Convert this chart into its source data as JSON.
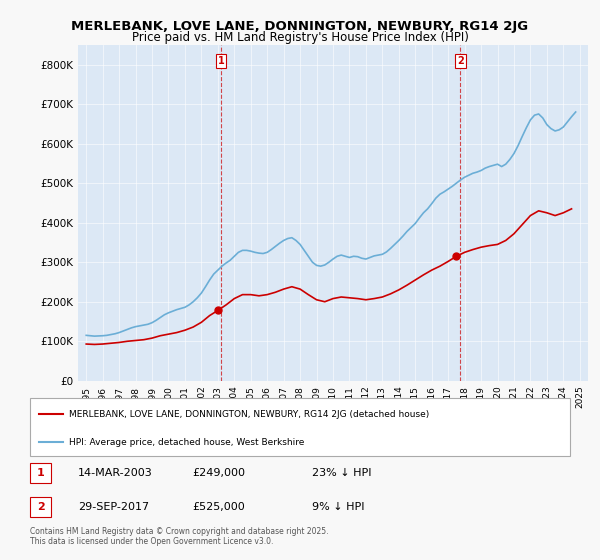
{
  "title": "MERLEBANK, LOVE LANE, DONNINGTON, NEWBURY, RG14 2JG",
  "subtitle": "Price paid vs. HM Land Registry's House Price Index (HPI)",
  "hpi_color": "#6baed6",
  "price_color": "#cc0000",
  "vline_color": "#cc0000",
  "background_color": "#e8f0f8",
  "plot_bg": "#dce8f5",
  "ylim": [
    0,
    850000
  ],
  "yticks": [
    0,
    100000,
    200000,
    300000,
    400000,
    500000,
    600000,
    700000,
    800000
  ],
  "ytick_labels": [
    "£0",
    "£100K",
    "£200K",
    "£300K",
    "£400K",
    "£500K",
    "£600K",
    "£700K",
    "£800K"
  ],
  "sale1_year": 2003.2,
  "sale1_price": 249000,
  "sale1_label": "1",
  "sale1_date": "14-MAR-2003",
  "sale1_pct": "23% ↓ HPI",
  "sale2_year": 2017.75,
  "sale2_price": 525000,
  "sale2_label": "2",
  "sale2_date": "29-SEP-2017",
  "sale2_pct": "9% ↓ HPI",
  "legend_entry1": "MERLEBANK, LOVE LANE, DONNINGTON, NEWBURY, RG14 2JG (detached house)",
  "legend_entry2": "HPI: Average price, detached house, West Berkshire",
  "footer": "Contains HM Land Registry data © Crown copyright and database right 2025.\nThis data is licensed under the Open Government Licence v3.0.",
  "hpi_data": {
    "years": [
      1995.0,
      1995.25,
      1995.5,
      1995.75,
      1996.0,
      1996.25,
      1996.5,
      1996.75,
      1997.0,
      1997.25,
      1997.5,
      1997.75,
      1998.0,
      1998.25,
      1998.5,
      1998.75,
      1999.0,
      1999.25,
      1999.5,
      1999.75,
      2000.0,
      2000.25,
      2000.5,
      2000.75,
      2001.0,
      2001.25,
      2001.5,
      2001.75,
      2002.0,
      2002.25,
      2002.5,
      2002.75,
      2003.0,
      2003.25,
      2003.5,
      2003.75,
      2004.0,
      2004.25,
      2004.5,
      2004.75,
      2005.0,
      2005.25,
      2005.5,
      2005.75,
      2006.0,
      2006.25,
      2006.5,
      2006.75,
      2007.0,
      2007.25,
      2007.5,
      2007.75,
      2008.0,
      2008.25,
      2008.5,
      2008.75,
      2009.0,
      2009.25,
      2009.5,
      2009.75,
      2010.0,
      2010.25,
      2010.5,
      2010.75,
      2011.0,
      2011.25,
      2011.5,
      2011.75,
      2012.0,
      2012.25,
      2012.5,
      2012.75,
      2013.0,
      2013.25,
      2013.5,
      2013.75,
      2014.0,
      2014.25,
      2014.5,
      2014.75,
      2015.0,
      2015.25,
      2015.5,
      2015.75,
      2016.0,
      2016.25,
      2016.5,
      2016.75,
      2017.0,
      2017.25,
      2017.5,
      2017.75,
      2018.0,
      2018.25,
      2018.5,
      2018.75,
      2019.0,
      2019.25,
      2019.5,
      2019.75,
      2020.0,
      2020.25,
      2020.5,
      2020.75,
      2021.0,
      2021.25,
      2021.5,
      2021.75,
      2022.0,
      2022.25,
      2022.5,
      2022.75,
      2023.0,
      2023.25,
      2023.5,
      2023.75,
      2024.0,
      2024.25,
      2024.5,
      2024.75
    ],
    "values": [
      115000,
      114000,
      113000,
      113500,
      114000,
      115000,
      117000,
      119000,
      122000,
      126000,
      130000,
      134000,
      137000,
      139000,
      141000,
      143000,
      147000,
      153000,
      160000,
      167000,
      172000,
      176000,
      180000,
      183000,
      186000,
      192000,
      200000,
      210000,
      222000,
      238000,
      255000,
      270000,
      280000,
      290000,
      298000,
      305000,
      315000,
      325000,
      330000,
      330000,
      328000,
      325000,
      323000,
      322000,
      325000,
      332000,
      340000,
      348000,
      355000,
      360000,
      362000,
      355000,
      345000,
      330000,
      315000,
      300000,
      292000,
      290000,
      293000,
      300000,
      308000,
      315000,
      318000,
      315000,
      312000,
      315000,
      314000,
      310000,
      308000,
      312000,
      316000,
      318000,
      320000,
      326000,
      335000,
      345000,
      355000,
      366000,
      378000,
      388000,
      398000,
      412000,
      425000,
      435000,
      448000,
      462000,
      472000,
      478000,
      485000,
      492000,
      500000,
      508000,
      515000,
      520000,
      525000,
      528000,
      532000,
      538000,
      542000,
      545000,
      548000,
      542000,
      548000,
      560000,
      575000,
      595000,
      618000,
      640000,
      660000,
      672000,
      675000,
      665000,
      648000,
      638000,
      632000,
      635000,
      642000,
      655000,
      668000,
      680000
    ]
  },
  "price_data": {
    "years": [
      1995.0,
      1995.5,
      1996.0,
      1996.5,
      1997.0,
      1997.5,
      1998.0,
      1998.5,
      1999.0,
      1999.5,
      2000.0,
      2000.5,
      2001.0,
      2001.5,
      2002.0,
      2002.5,
      2003.0,
      2003.5,
      2004.0,
      2004.5,
      2005.0,
      2005.5,
      2006.0,
      2006.5,
      2007.0,
      2007.5,
      2008.0,
      2008.5,
      2009.0,
      2009.5,
      2010.0,
      2010.5,
      2011.0,
      2011.5,
      2012.0,
      2012.5,
      2013.0,
      2013.5,
      2014.0,
      2014.5,
      2015.0,
      2015.5,
      2016.0,
      2016.5,
      2017.0,
      2017.5,
      2018.0,
      2018.5,
      2019.0,
      2019.5,
      2020.0,
      2020.5,
      2021.0,
      2021.5,
      2022.0,
      2022.5,
      2023.0,
      2023.5,
      2024.0,
      2024.5
    ],
    "values": [
      93000,
      92000,
      93000,
      95000,
      97000,
      100000,
      102000,
      104000,
      108000,
      114000,
      118000,
      122000,
      128000,
      136000,
      148000,
      165000,
      178000,
      192000,
      208000,
      218000,
      218000,
      215000,
      218000,
      224000,
      232000,
      238000,
      232000,
      218000,
      205000,
      200000,
      208000,
      212000,
      210000,
      208000,
      205000,
      208000,
      212000,
      220000,
      230000,
      242000,
      255000,
      268000,
      280000,
      290000,
      302000,
      315000,
      325000,
      332000,
      338000,
      342000,
      345000,
      355000,
      372000,
      395000,
      418000,
      430000,
      425000,
      418000,
      425000,
      435000
    ]
  }
}
